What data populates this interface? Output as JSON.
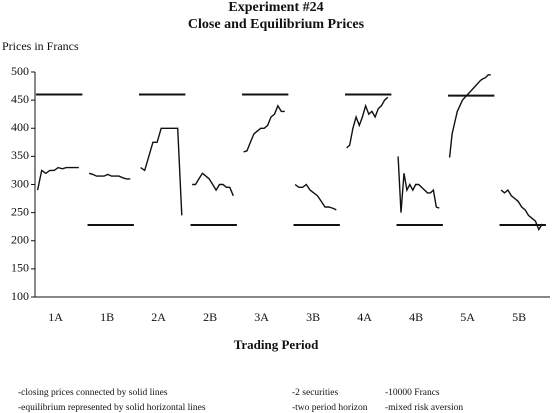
{
  "chart_data": {
    "type": "line",
    "title": "Experiment #24",
    "subtitle": "Close and Equilibrium Prices",
    "y_label": "Prices in Francs",
    "x_label": "Trading Period",
    "categories": [
      "1A",
      "1B",
      "2A",
      "2B",
      "3A",
      "3B",
      "4A",
      "4B",
      "5A",
      "5B"
    ],
    "closing_prices": [
      [
        290,
        325,
        320,
        325,
        325,
        330,
        328,
        330,
        330,
        330,
        330
      ],
      [
        320,
        318,
        315,
        315,
        315,
        318,
        315,
        315,
        315,
        312,
        310,
        310
      ],
      [
        330,
        325,
        350,
        375,
        375,
        400,
        400,
        400,
        400,
        400,
        245
      ],
      [
        300,
        300,
        310,
        320,
        315,
        310,
        300,
        290,
        300,
        300,
        295,
        295,
        280
      ],
      [
        358,
        360,
        375,
        390,
        395,
        400,
        400,
        405,
        420,
        425,
        440,
        430,
        430
      ],
      [
        300,
        295,
        295,
        300,
        290,
        285,
        280,
        270,
        260,
        260,
        258,
        255
      ],
      [
        365,
        370,
        400,
        420,
        405,
        420,
        440,
        425,
        430,
        420,
        435,
        440,
        450,
        455
      ],
      [
        350,
        250,
        320,
        290,
        300,
        290,
        300,
        300,
        295,
        290,
        285,
        285,
        290,
        260,
        258
      ],
      [
        348,
        390,
        410,
        430,
        440,
        450,
        455,
        460,
        465,
        470,
        475,
        480,
        485,
        488,
        490,
        495,
        495
      ],
      [
        290,
        285,
        290,
        280,
        275,
        270,
        260,
        255,
        245,
        240,
        235,
        220,
        230
      ]
    ],
    "equilibrium": [
      460,
      228,
      460,
      228,
      460,
      228,
      460,
      228,
      458,
      228
    ],
    "color": "#111111",
    "ylim": [
      100,
      500
    ],
    "yticks": [
      100,
      150,
      200,
      250,
      300,
      350,
      400,
      450,
      500
    ],
    "notes": [
      "-closing prices connected by solid lines",
      "-equilibrium represented by solid horizontal lines",
      "-2 securities",
      "-10000 Francs",
      "-two period horizon",
      "-mixed risk aversion"
    ]
  }
}
